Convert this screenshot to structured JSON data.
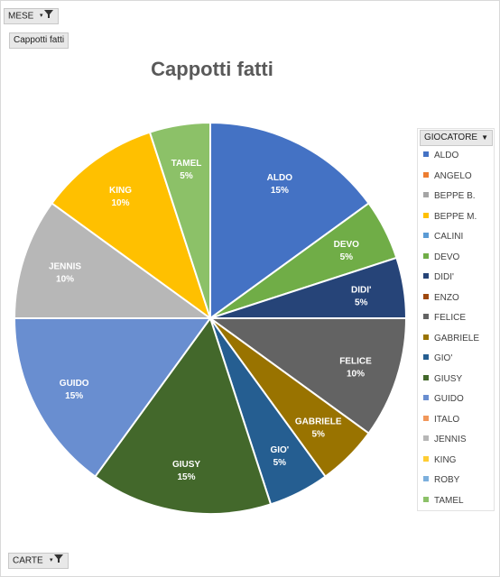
{
  "filters": {
    "mese_label": "MESE",
    "values_label": "Cappotti fatti",
    "carte_label": "CARTE"
  },
  "legend": {
    "header": "GIOCATORE",
    "items": [
      {
        "label": "ALDO",
        "color": "#4472c4"
      },
      {
        "label": "ANGELO",
        "color": "#ed7d31"
      },
      {
        "label": "BEPPE B.",
        "color": "#a5a5a5"
      },
      {
        "label": "BEPPE M.",
        "color": "#ffc000"
      },
      {
        "label": "CALINI",
        "color": "#5b9bd5"
      },
      {
        "label": "DEVO",
        "color": "#70ad47"
      },
      {
        "label": "DIDI'",
        "color": "#264478"
      },
      {
        "label": "ENZO",
        "color": "#9e480e"
      },
      {
        "label": "FELICE",
        "color": "#636363"
      },
      {
        "label": "GABRIELE",
        "color": "#997300"
      },
      {
        "label": "GIO'",
        "color": "#255e91"
      },
      {
        "label": "GIUSY",
        "color": "#43682b"
      },
      {
        "label": "GUIDO",
        "color": "#698ed0"
      },
      {
        "label": "ITALO",
        "color": "#f1975a"
      },
      {
        "label": "JENNIS",
        "color": "#b7b7b7"
      },
      {
        "label": "KING",
        "color": "#ffcd33"
      },
      {
        "label": "ROBY",
        "color": "#7cafdd"
      },
      {
        "label": "TAMEL",
        "color": "#8cc168"
      }
    ]
  },
  "chart_data": {
    "type": "pie",
    "title": "Cappotti fatti",
    "slices": [
      {
        "label": "ALDO",
        "percent": "15%",
        "value": 15,
        "color": "#4472c4"
      },
      {
        "label": "DEVO",
        "percent": "5%",
        "value": 5,
        "color": "#70ad47"
      },
      {
        "label": "DIDI'",
        "percent": "5%",
        "value": 5,
        "color": "#264478"
      },
      {
        "label": "FELICE",
        "percent": "10%",
        "value": 10,
        "color": "#636363"
      },
      {
        "label": "GABRIELE",
        "percent": "5%",
        "value": 5,
        "color": "#997300"
      },
      {
        "label": "GIO'",
        "percent": "5%",
        "value": 5,
        "color": "#255e91"
      },
      {
        "label": "GIUSY",
        "percent": "15%",
        "value": 15,
        "color": "#43682b"
      },
      {
        "label": "GUIDO",
        "percent": "15%",
        "value": 15,
        "color": "#698ed0"
      },
      {
        "label": "JENNIS",
        "percent": "10%",
        "value": 10,
        "color": "#b7b7b7"
      },
      {
        "label": "KING",
        "percent": "10%",
        "value": 10,
        "color": "#ffc000"
      },
      {
        "label": "TAMEL",
        "percent": "5%",
        "value": 5,
        "color": "#8cc168"
      }
    ],
    "legend_position": "right"
  }
}
